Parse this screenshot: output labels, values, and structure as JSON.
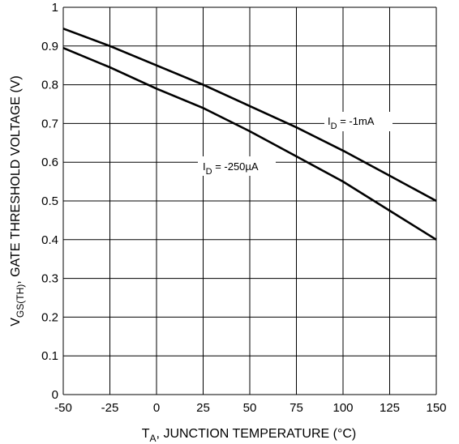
{
  "chart_data": {
    "type": "line",
    "xlabel_main": "T",
    "xlabel_sub": "A",
    "xlabel_rest": ", JUNCTION TEMPERATURE (°C)",
    "ylabel_main": "V",
    "ylabel_sub": "GS(TH)",
    "ylabel_rest": ", GATE THRESHOLD VOLTAGE (V)",
    "xlim": [
      -50,
      150
    ],
    "ylim": [
      0,
      1
    ],
    "xticks": [
      -50,
      -25,
      0,
      25,
      50,
      75,
      100,
      125,
      150
    ],
    "yticks": [
      0,
      0.1,
      0.2,
      0.3,
      0.4,
      0.5,
      0.6,
      0.7,
      0.8,
      0.9,
      1
    ],
    "grid": true,
    "series": [
      {
        "name": "I_D = -1mA",
        "label_main": "I",
        "label_sub": "D",
        "label_rest": " = -1mA",
        "x": [
          -50,
          -25,
          0,
          25,
          50,
          75,
          100,
          125,
          150
        ],
        "y": [
          0.945,
          0.9,
          0.85,
          0.8,
          0.745,
          0.69,
          0.63,
          0.565,
          0.5
        ]
      },
      {
        "name": "I_D = -250µA",
        "label_main": "I",
        "label_sub": "D",
        "label_rest": " = -250µA",
        "x": [
          -50,
          -25,
          0,
          25,
          50,
          75,
          100,
          125,
          150
        ],
        "y": [
          0.895,
          0.845,
          0.79,
          0.74,
          0.68,
          0.615,
          0.55,
          0.475,
          0.4
        ]
      }
    ]
  }
}
